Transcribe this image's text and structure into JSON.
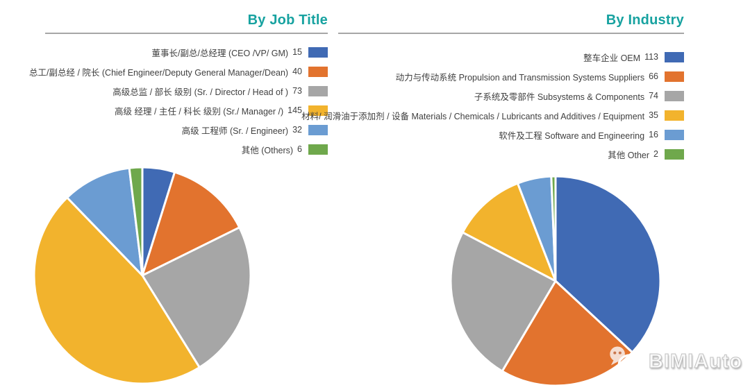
{
  "palette": {
    "background": "#FFFFFF",
    "title_color": "#17A2A0",
    "divider_color": "#A6A6A6",
    "legend_text_color": "#3F3F3F",
    "watermark_text_color": "#FAFAFA",
    "series": [
      "#406AB4",
      "#E2732E",
      "#A6A6A6",
      "#F2B32D",
      "#6B9CD2",
      "#6FA84C"
    ]
  },
  "chart_data": [
    {
      "type": "pie",
      "title": "By Job Title",
      "legend_position": "top-right",
      "start_angle_deg": 0,
      "direction": "clockwise",
      "categories": [
        "董事长/副总/总经理 (CEO /VP/ GM)",
        "总工/副总经 / 院长 (Chief Engineer/Deputy General Manager/Dean)",
        "高级总监 / 部长 级别 (Sr. / Director / Head of )",
        "高级 经理 / 主任 / 科长 级别 (Sr./ Manager /)",
        "高级 工程师 (Sr. / Engineer)",
        "其他 (Others)"
      ],
      "values": [
        15,
        40,
        73,
        145,
        32,
        6
      ],
      "colors": [
        "#406AB4",
        "#E2732E",
        "#A6A6A6",
        "#F2B32D",
        "#6B9CD2",
        "#6FA84C"
      ]
    },
    {
      "type": "pie",
      "title": "By Industry",
      "legend_position": "top-right",
      "start_angle_deg": 0,
      "direction": "clockwise",
      "categories": [
        "整车企业 OEM",
        "动力与传动系统 Propulsion and Transmission Systems Suppliers",
        "子系统及零部件 Subsystems & Components",
        "材料/ 润滑油于添加剂 / 设备 Materials / Chemicals / Lubricants and Additives / Equipment",
        "软件及工程 Software and Engineering",
        "其他 Other"
      ],
      "values": [
        113,
        66,
        74,
        35,
        16,
        2
      ],
      "colors": [
        "#406AB4",
        "#E2732E",
        "#A6A6A6",
        "#F2B32D",
        "#6B9CD2",
        "#6FA84C"
      ]
    }
  ],
  "watermark": {
    "text": "BIMIAuto",
    "icon": "wechat-icon"
  }
}
